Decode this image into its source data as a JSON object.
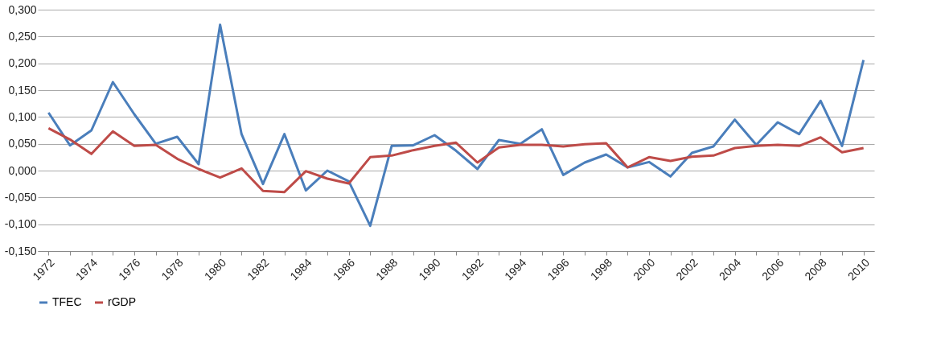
{
  "chart_data": {
    "type": "line",
    "categories": [
      "1972",
      null,
      "1974",
      null,
      "1976",
      null,
      "1978",
      null,
      "1980",
      null,
      "1982",
      null,
      "1984",
      null,
      "1986",
      null,
      "1988",
      null,
      "1990",
      null,
      "1992",
      null,
      "1994",
      null,
      "1996",
      null,
      "1998",
      null,
      "2000",
      null,
      "2002",
      null,
      "2004",
      null,
      "2006",
      null,
      "2008",
      null,
      "2010"
    ],
    "series": [
      {
        "name": "TFEC",
        "color": "#4a7ebb",
        "values": [
          0.108,
          0.047,
          0.075,
          0.165,
          0.105,
          0.05,
          0.063,
          0.012,
          0.272,
          0.068,
          -0.025,
          0.068,
          -0.037,
          0.0,
          -0.02,
          -0.103,
          0.046,
          0.047,
          0.066,
          0.037,
          0.003,
          0.057,
          0.05,
          0.077,
          -0.008,
          0.015,
          0.03,
          0.006,
          0.016,
          -0.011,
          0.033,
          0.045,
          0.095,
          0.048,
          0.09,
          0.068,
          0.13,
          0.046,
          0.206
        ]
      },
      {
        "name": "rGDP",
        "color": "#be4b48",
        "values": [
          0.079,
          0.058,
          0.031,
          0.073,
          0.046,
          0.048,
          0.022,
          0.003,
          -0.013,
          0.004,
          -0.038,
          -0.04,
          -0.001,
          -0.015,
          -0.024,
          0.025,
          0.028,
          0.038,
          0.046,
          0.052,
          0.015,
          0.043,
          0.048,
          0.048,
          0.045,
          0.049,
          0.051,
          0.006,
          0.025,
          0.018,
          0.026,
          0.028,
          0.042,
          0.046,
          0.048,
          0.046,
          0.062,
          0.034,
          0.042
        ]
      }
    ],
    "ylim": [
      -0.15,
      0.3
    ],
    "yticks": [
      {
        "value": -0.15,
        "label": "-0,150"
      },
      {
        "value": -0.1,
        "label": "-0,100"
      },
      {
        "value": -0.05,
        "label": "-0,050"
      },
      {
        "value": 0,
        "label": "0,000"
      },
      {
        "value": 0.05,
        "label": "0,050"
      },
      {
        "value": 0.1,
        "label": "0,100"
      },
      {
        "value": 0.15,
        "label": "0,150"
      },
      {
        "value": 0.2,
        "label": "0,200"
      },
      {
        "value": 0.25,
        "label": "0,250"
      },
      {
        "value": 0.3,
        "label": "0,300"
      }
    ],
    "grid": "y",
    "legend": "bottom",
    "marker": "none",
    "line_style": "solid"
  }
}
